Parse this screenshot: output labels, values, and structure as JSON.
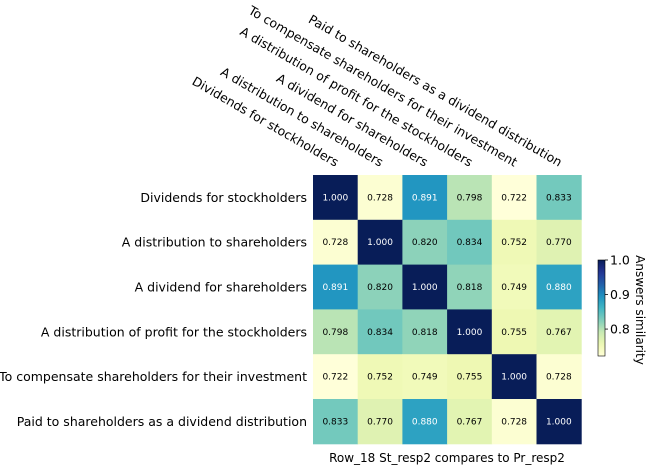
{
  "chart_data": {
    "type": "heatmap",
    "rows": [
      "Dividends for stockholders",
      "A distribution to shareholders",
      "A dividend for shareholders",
      "A distribution of profit for the stockholders",
      "To compensate shareholders for their investment",
      "Paid to shareholders as a dividend distribution"
    ],
    "columns": [
      "Dividends for stockholders",
      "A distribution to shareholders",
      "A dividend for shareholders",
      "A distribution of profit for the stockholders",
      "To compensate shareholders for their investment",
      "Paid to shareholders as a dividend distribution"
    ],
    "values": [
      [
        1.0,
        0.728,
        0.891,
        0.798,
        0.722,
        0.833
      ],
      [
        0.728,
        1.0,
        0.82,
        0.834,
        0.752,
        0.77
      ],
      [
        0.891,
        0.82,
        1.0,
        0.818,
        0.749,
        0.88
      ],
      [
        0.798,
        0.834,
        0.818,
        1.0,
        0.755,
        0.767
      ],
      [
        0.722,
        0.752,
        0.749,
        0.755,
        1.0,
        0.728
      ],
      [
        0.833,
        0.77,
        0.88,
        0.767,
        0.728,
        1.0
      ]
    ],
    "xlabel": "Row_18 St_resp2 compares to Pr_resp2",
    "colorbar_label": "Answers similarity",
    "colorbar_ticks": [
      "0.8",
      "0.9",
      "1.0"
    ],
    "colorbar_tick_values": [
      0.8,
      0.9,
      1.0
    ],
    "vmin": 0.722,
    "vmax": 1.0,
    "colormap": "YlGnBu",
    "value_format": "3 decimals"
  }
}
